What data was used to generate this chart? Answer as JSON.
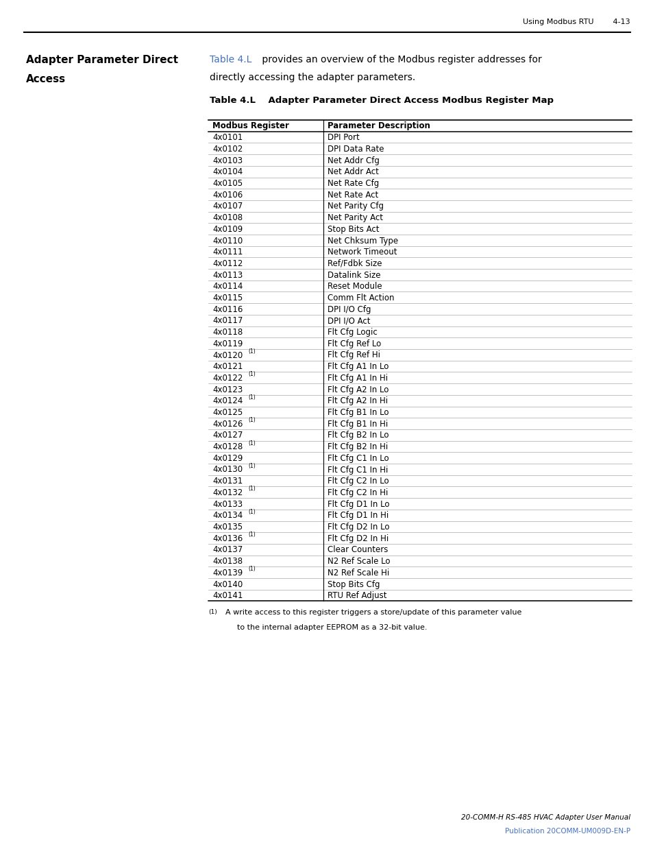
{
  "page_header_right": "Using Modbus RTU        4-13",
  "section_title": "Adapter Parameter Direct\nAccess",
  "intro_text_link": "Table 4.L",
  "intro_text_rest": " provides an overview of the Modbus register addresses for\ndirectly accessing the adapter parameters.",
  "table_title": "Table 4.L    Adapter Parameter Direct Access Modbus Register Map",
  "col1_header": "Modbus Register",
  "col2_header": "Parameter Description",
  "rows": [
    [
      "4x0101",
      "DPI Port",
      false
    ],
    [
      "4x0102",
      "DPI Data Rate",
      false
    ],
    [
      "4x0103",
      "Net Addr Cfg",
      false
    ],
    [
      "4x0104",
      "Net Addr Act",
      false
    ],
    [
      "4x0105",
      "Net Rate Cfg",
      false
    ],
    [
      "4x0106",
      "Net Rate Act",
      false
    ],
    [
      "4x0107",
      "Net Parity Cfg",
      false
    ],
    [
      "4x0108",
      "Net Parity Act",
      false
    ],
    [
      "4x0109",
      "Stop Bits Act",
      false
    ],
    [
      "4x0110",
      "Net Chksum Type",
      false
    ],
    [
      "4x0111",
      "Network Timeout",
      false
    ],
    [
      "4x0112",
      "Ref/Fdbk Size",
      false
    ],
    [
      "4x0113",
      "Datalink Size",
      false
    ],
    [
      "4x0114",
      "Reset Module",
      false
    ],
    [
      "4x0115",
      "Comm Flt Action",
      false
    ],
    [
      "4x0116",
      "DPI I/O Cfg",
      false
    ],
    [
      "4x0117",
      "DPI I/O Act",
      false
    ],
    [
      "4x0118",
      "Flt Cfg Logic",
      false
    ],
    [
      "4x0119",
      "Flt Cfg Ref Lo",
      false
    ],
    [
      "4x0120",
      "Flt Cfg Ref Hi",
      true
    ],
    [
      "4x0121",
      "Flt Cfg A1 In Lo",
      false
    ],
    [
      "4x0122",
      "Flt Cfg A1 In Hi",
      true
    ],
    [
      "4x0123",
      "Flt Cfg A2 In Lo",
      false
    ],
    [
      "4x0124",
      "Flt Cfg A2 In Hi",
      true
    ],
    [
      "4x0125",
      "Flt Cfg B1 In Lo",
      false
    ],
    [
      "4x0126",
      "Flt Cfg B1 In Hi",
      true
    ],
    [
      "4x0127",
      "Flt Cfg B2 In Lo",
      false
    ],
    [
      "4x0128",
      "Flt Cfg B2 In Hi",
      true
    ],
    [
      "4x0129",
      "Flt Cfg C1 In Lo",
      false
    ],
    [
      "4x0130",
      "Flt Cfg C1 In Hi",
      true
    ],
    [
      "4x0131",
      "Flt Cfg C2 In Lo",
      false
    ],
    [
      "4x0132",
      "Flt Cfg C2 In Hi",
      true
    ],
    [
      "4x0133",
      "Flt Cfg D1 In Lo",
      false
    ],
    [
      "4x0134",
      "Flt Cfg D1 In Hi",
      true
    ],
    [
      "4x0135",
      "Flt Cfg D2 In Lo",
      false
    ],
    [
      "4x0136",
      "Flt Cfg D2 In Hi",
      true
    ],
    [
      "4x0137",
      "Clear Counters",
      false
    ],
    [
      "4x0138",
      "N2 Ref Scale Lo",
      false
    ],
    [
      "4x0139",
      "N2 Ref Scale Hi",
      true
    ],
    [
      "4x0140",
      "Stop Bits Cfg",
      false
    ],
    [
      "4x0141",
      "RTU Ref Adjust",
      false
    ]
  ],
  "footnote_text": "A write access to this register triggers a store/update of this parameter value\nto the internal adapter EEPROM as a 32-bit value.",
  "footer_line1": "20-COMM-H RS-485 HVAC Adapter User Manual",
  "footer_line2": "Publication 20COMM-UM009D-EN-P",
  "bg_color": "#ffffff",
  "text_color": "#000000",
  "link_color": "#4472c4"
}
